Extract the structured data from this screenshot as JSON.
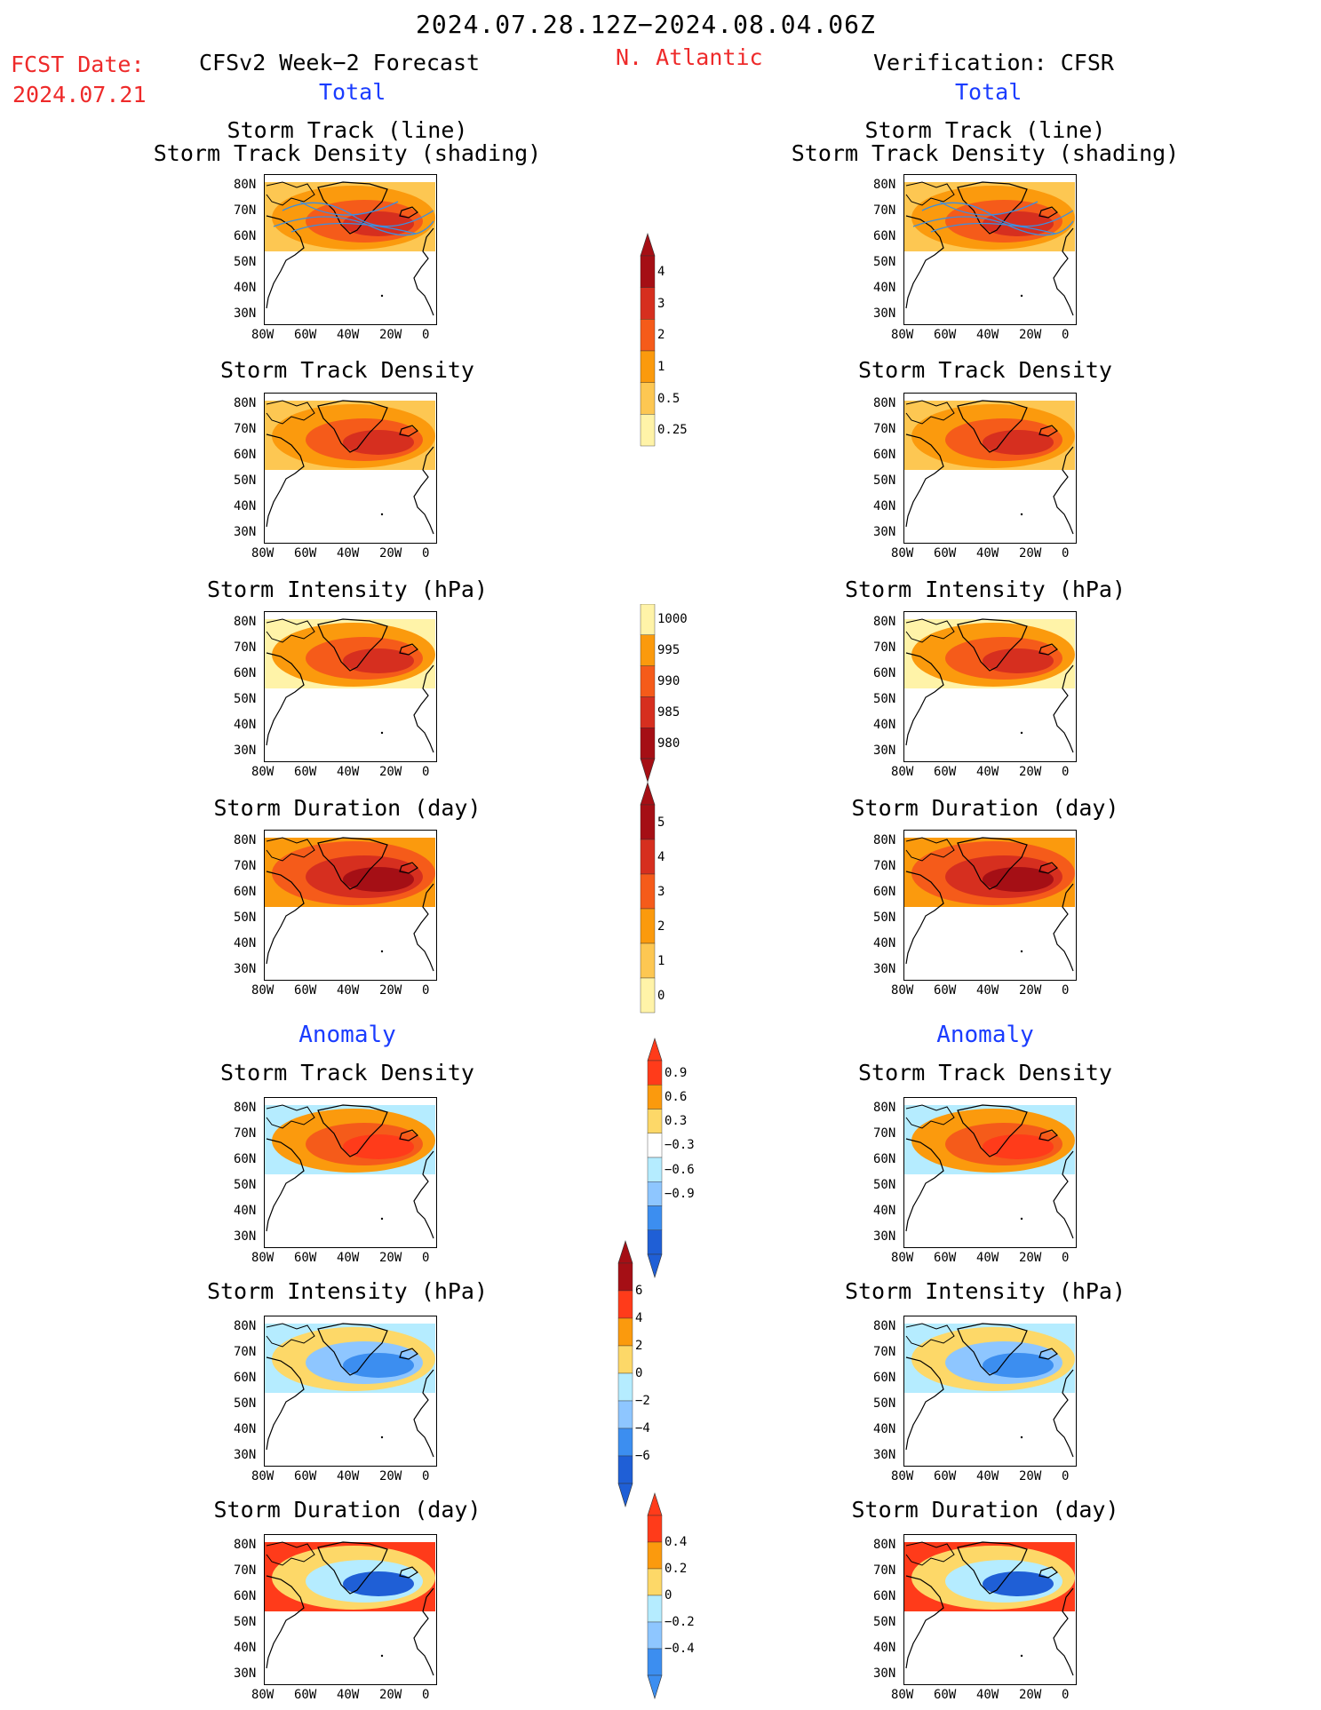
{
  "header": {
    "date_range": "2024.07.28.12Z−2024.08.04.06Z",
    "region": "N. Atlantic",
    "fcst_date_label": "FCST Date:",
    "fcst_date_value": "2024.07.21",
    "left_column_title": "CFSv2 Week−2 Forecast",
    "right_column_title": "Verification: CFSR",
    "left_total": "Total",
    "right_total": "Total"
  },
  "sections": {
    "left_anomaly": "Anomaly",
    "right_anomaly": "Anomaly"
  },
  "panels": {
    "track_line": {
      "title1": "Storm Track (line)",
      "title2": "Storm Track Density (shading)"
    },
    "track_density": {
      "title": "Storm Track Density"
    },
    "intensity": {
      "title": "Storm Intensity (hPa)"
    },
    "duration": {
      "title": "Storm Duration (day)"
    },
    "anom_density": {
      "title": "Storm Track Density"
    },
    "anom_intensity": {
      "title": "Storm Intensity (hPa)"
    },
    "anom_duration": {
      "title": "Storm Duration (day)"
    }
  },
  "map_axes": {
    "lat_labels": [
      "80N",
      "70N",
      "60N",
      "50N",
      "40N",
      "30N"
    ],
    "lon_labels": [
      "80W",
      "60W",
      "40W",
      "20W",
      "0"
    ]
  },
  "colorbars": {
    "density": {
      "labels": [
        "4",
        "3",
        "2",
        "1",
        "0.5",
        "0.25"
      ],
      "colors": [
        "#a50f15",
        "#d62f1f",
        "#f55b1a",
        "#fb9a0d",
        "#fdc752",
        "#fff3a8"
      ]
    },
    "intensity": {
      "labels": [
        "1000",
        "995",
        "990",
        "985",
        "980"
      ],
      "colors": [
        "#fff3a8",
        "#fb9a0d",
        "#f55b1a",
        "#d62f1f",
        "#a50f15"
      ]
    },
    "duration": {
      "labels": [
        "5",
        "4",
        "3",
        "2",
        "1",
        "0"
      ],
      "colors": [
        "#a50f15",
        "#d62f1f",
        "#f55b1a",
        "#fb9a0d",
        "#fdc752",
        "#fff3a8"
      ]
    },
    "anom_density": {
      "labels": [
        "0.9",
        "0.6",
        "0.3",
        "−0.3",
        "−0.6",
        "−0.9"
      ],
      "colors": [
        "#ff3b1a",
        "#fb9a0d",
        "#fdd868",
        "#ffffff",
        "#b5ecff",
        "#8ec6ff",
        "#3c8ef0",
        "#1f5fd6"
      ]
    },
    "anom_intensity": {
      "labels": [
        "6",
        "4",
        "2",
        "0",
        "−2",
        "−4",
        "−6"
      ],
      "colors": [
        "#a50f15",
        "#ff3b1a",
        "#fb9a0d",
        "#fdd868",
        "#b5ecff",
        "#8ec6ff",
        "#3c8ef0",
        "#1f5fd6"
      ]
    },
    "anom_duration": {
      "labels": [
        "0.4",
        "0.2",
        "0",
        "−0.2",
        "−0.4"
      ],
      "colors": [
        "#ff3b1a",
        "#fb9a0d",
        "#fdd868",
        "#b5ecff",
        "#8ec6ff",
        "#3c8ef0"
      ]
    }
  },
  "colors": {
    "track_line": "#3c8ee0",
    "coast": "#000000"
  }
}
